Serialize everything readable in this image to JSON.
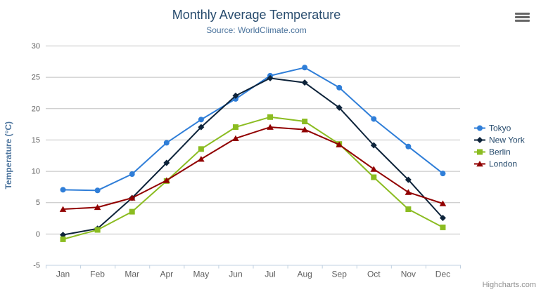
{
  "chart": {
    "title": "Monthly Average Temperature",
    "subtitle": "Source: WorldClimate.com",
    "credits": "Highcharts.com",
    "icons": {
      "context_menu": "hamburger-icon"
    },
    "colors": {
      "title_text": "#274b6d",
      "subtitle_text": "#4d759e",
      "axis_label_text": "#606060",
      "axis_title_text": "#4d759e",
      "grid_line": "#C0C0C0",
      "axis_line": "#C0D0E0",
      "legend_text": "#274b6d",
      "credits_text": "#909090"
    }
  },
  "chart_data": {
    "type": "line",
    "title": "Monthly Average Temperature",
    "subtitle": "Source: WorldClimate.com",
    "categories": [
      "Jan",
      "Feb",
      "Mar",
      "Apr",
      "May",
      "Jun",
      "Jul",
      "Aug",
      "Sep",
      "Oct",
      "Nov",
      "Dec"
    ],
    "series": [
      {
        "name": "Tokyo",
        "color": "#2f7ed8",
        "marker": "circle",
        "values": [
          7.0,
          6.9,
          9.5,
          14.5,
          18.2,
          21.5,
          25.2,
          26.5,
          23.3,
          18.3,
          13.9,
          9.6
        ]
      },
      {
        "name": "New York",
        "color": "#0d233a",
        "marker": "diamond",
        "values": [
          -0.2,
          0.8,
          5.7,
          11.3,
          17.0,
          22.0,
          24.8,
          24.1,
          20.1,
          14.1,
          8.6,
          2.5
        ]
      },
      {
        "name": "Berlin",
        "color": "#8bbc21",
        "marker": "square",
        "values": [
          -0.9,
          0.6,
          3.5,
          8.4,
          13.5,
          17.0,
          18.6,
          17.9,
          14.3,
          9.0,
          3.9,
          1.0
        ]
      },
      {
        "name": "London",
        "color": "#910000",
        "marker": "triangle",
        "values": [
          3.9,
          4.2,
          5.7,
          8.5,
          11.9,
          15.2,
          17.0,
          16.6,
          14.2,
          10.3,
          6.6,
          4.8
        ]
      }
    ],
    "xlabel": "",
    "ylabel": "Temperature (°C)",
    "ylim": [
      -5,
      30
    ],
    "yticks": [
      -5,
      0,
      5,
      10,
      15,
      20,
      25,
      30
    ],
    "grid": true,
    "legend_position": "right"
  }
}
